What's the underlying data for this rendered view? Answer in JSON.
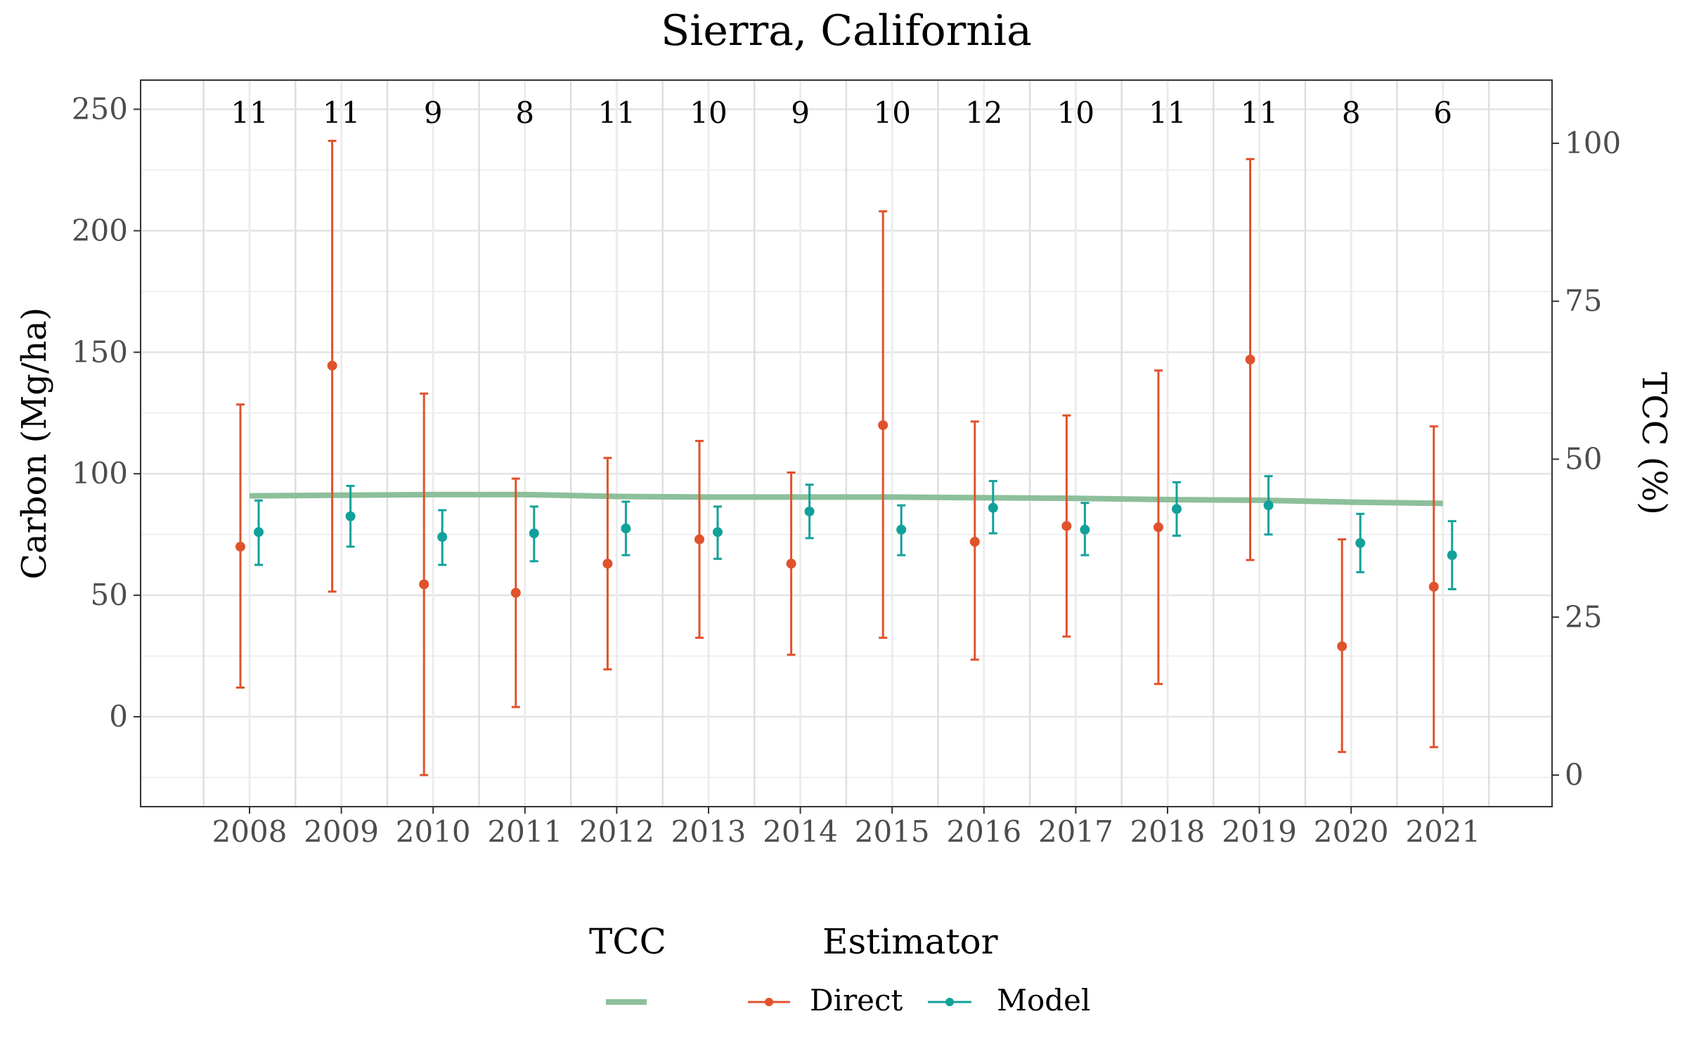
{
  "chart_data": {
    "type": "line",
    "title": "Sierra, California",
    "ylabel": "Carbon (Mg/ha)",
    "y2label": "TCC (%)",
    "xlabel": "",
    "ylim": [
      -37,
      262
    ],
    "y_ticks": [
      0,
      50,
      100,
      150,
      200,
      250
    ],
    "y2lim": [
      -5,
      110
    ],
    "y2_ticks": [
      0,
      25,
      50,
      75,
      100
    ],
    "categories": [
      "2008",
      "2009",
      "2010",
      "2011",
      "2012",
      "2013",
      "2014",
      "2015",
      "2016",
      "2017",
      "2018",
      "2019",
      "2020",
      "2021"
    ],
    "counts": [
      "11",
      "11",
      "9",
      "8",
      "11",
      "10",
      "9",
      "10",
      "12",
      "10",
      "11",
      "11",
      "8",
      "6"
    ],
    "series": [
      {
        "name": "Direct",
        "color": "#e0522b",
        "values": [
          70.0,
          144.5,
          54.5,
          51.0,
          63.0,
          73.0,
          63.0,
          120.0,
          72.0,
          78.5,
          78.0,
          147.0,
          29.0,
          53.5
        ],
        "lower": [
          12.0,
          51.5,
          -24.0,
          4.0,
          19.5,
          32.5,
          25.5,
          32.5,
          23.5,
          33.0,
          13.5,
          64.5,
          -14.5,
          -12.5
        ],
        "upper": [
          128.5,
          237.0,
          133.0,
          98.0,
          106.5,
          113.5,
          100.5,
          208.0,
          121.5,
          124.0,
          142.5,
          229.5,
          73.0,
          119.5
        ]
      },
      {
        "name": "Model",
        "color": "#12a19a",
        "values": [
          76.0,
          82.5,
          74.0,
          75.5,
          77.5,
          76.0,
          84.5,
          77.0,
          86.0,
          77.0,
          85.5,
          87.0,
          71.5,
          66.5
        ],
        "lower": [
          62.5,
          70.0,
          62.5,
          64.0,
          66.5,
          65.0,
          73.5,
          66.5,
          75.5,
          66.5,
          74.5,
          75.0,
          59.5,
          52.5
        ],
        "upper": [
          89.0,
          95.0,
          85.0,
          86.5,
          88.5,
          86.5,
          95.5,
          87.0,
          97.0,
          88.0,
          96.5,
          99.0,
          83.5,
          80.5
        ]
      }
    ],
    "tcc": {
      "name": "TCC",
      "color": "#8cbf9a",
      "values": [
        44.2,
        44.3,
        44.4,
        44.4,
        44.1,
        44.0,
        44.0,
        44.0,
        43.9,
        43.8,
        43.6,
        43.5,
        43.2,
        43.0
      ]
    },
    "grid": true,
    "legend_placement": "bottom",
    "legend": {
      "tcc_title": "TCC",
      "estimator_title": "Estimator",
      "estimator_items": [
        "Direct",
        "Model"
      ]
    }
  }
}
